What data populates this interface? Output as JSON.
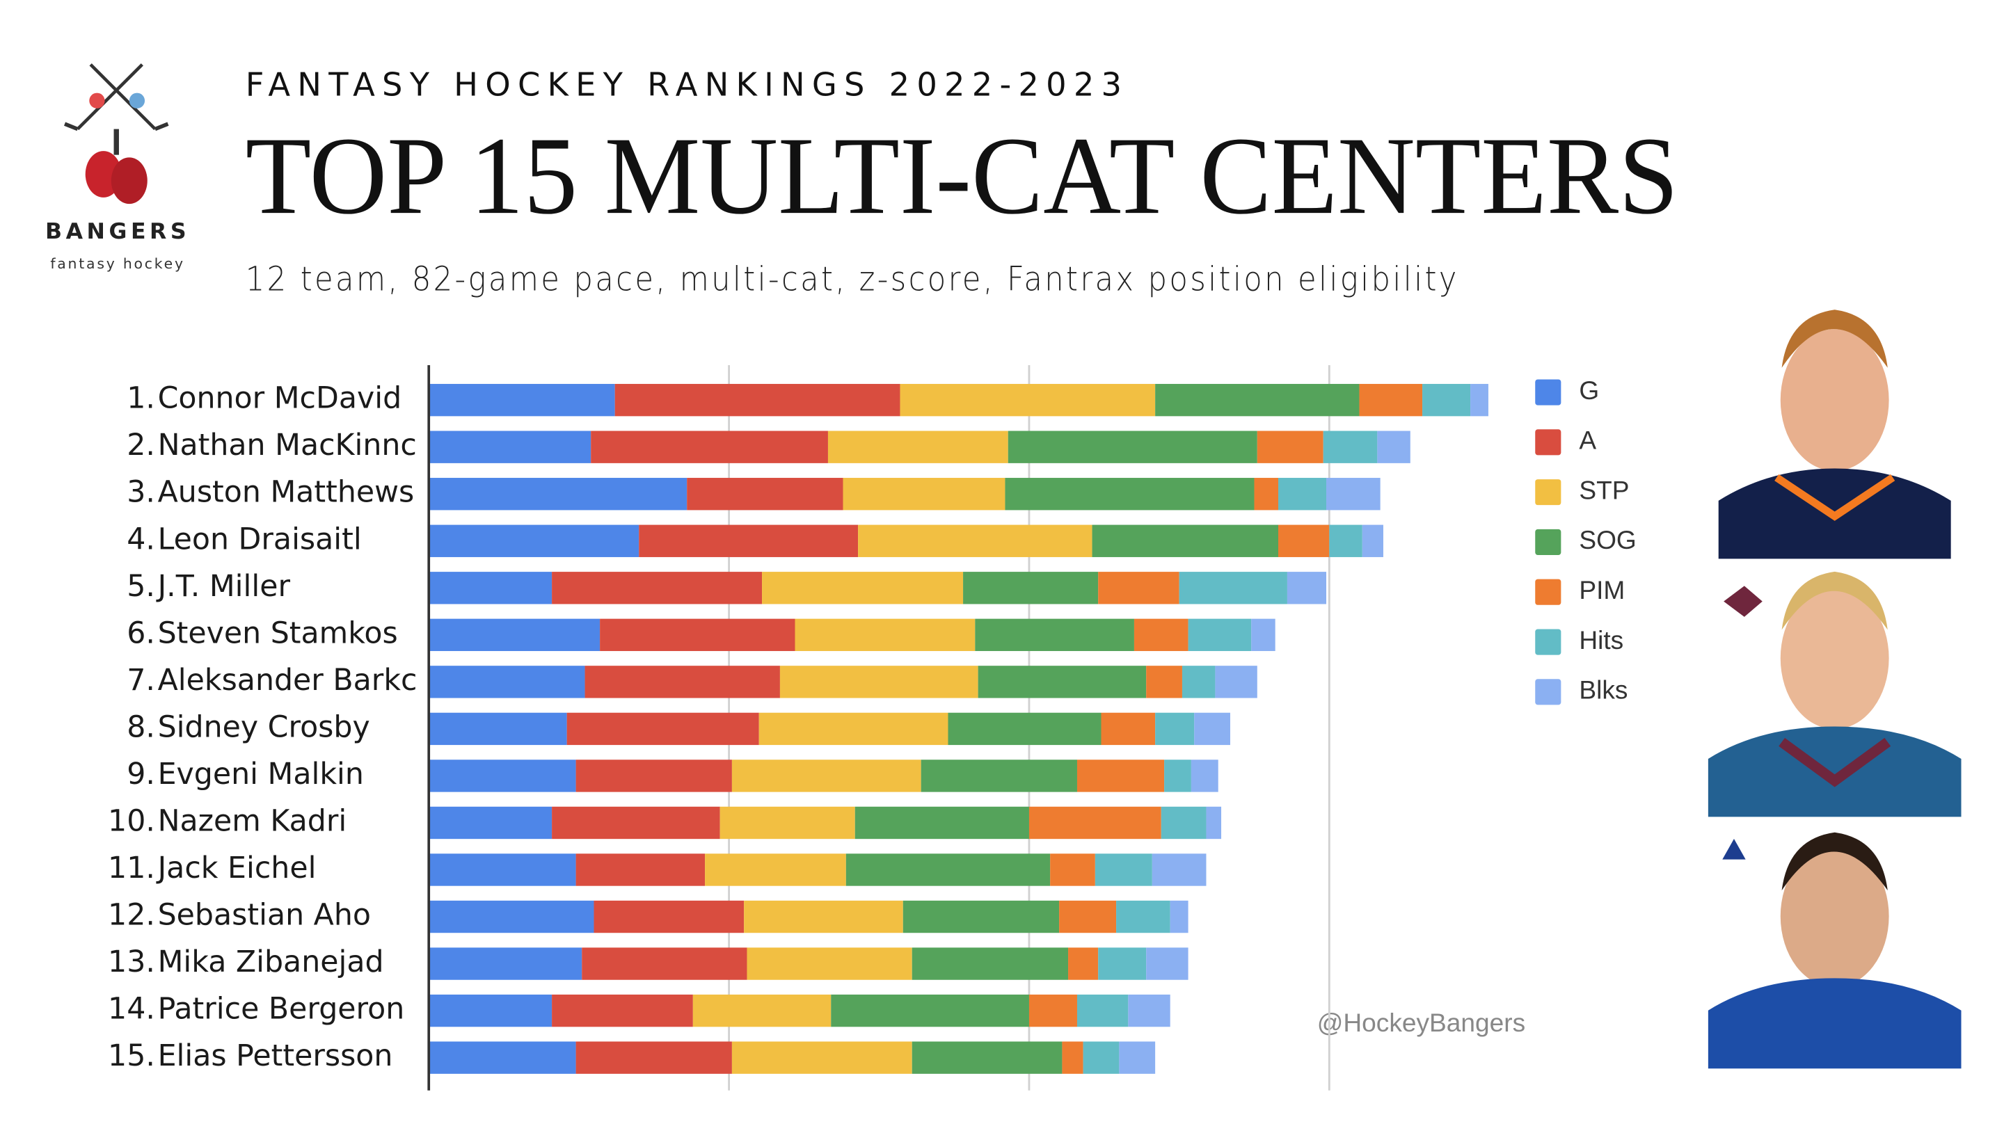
{
  "logo": {
    "name": "BANGERS",
    "tagline": "fantasy hockey"
  },
  "chart_data": {
    "type": "stacked-bar",
    "orientation": "horizontal",
    "header": "FANTASY HOCKEY RANKINGS 2022-2023",
    "title": "TOP 15 MULTI-CAT CENTERS",
    "subtitle": "12 team, 82-game pace, multi-cat, z-score, Fantrax position eligibility",
    "watermark": "@HockeyBangers",
    "ranks": [
      "1.",
      "2.",
      "3.",
      "4.",
      "5.",
      "6.",
      "7.",
      "8.",
      "9.",
      "10.",
      "11.",
      "12.",
      "13.",
      "14.",
      "15."
    ],
    "categories": [
      "Connor McDavid",
      "Nathan MacKinnc",
      "Auston Matthews",
      "Leon Draisaitl",
      "J.T. Miller",
      "Steven Stamkos",
      "Aleksander Barkc",
      "Sidney Crosby",
      "Evgeni Malkin",
      "Nazem Kadri",
      "Jack Eichel",
      "Sebastian Aho",
      "Mika Zibanejad",
      "Patrice Bergeron",
      "Elias Pettersson"
    ],
    "xlim": [
      0,
      3.6
    ],
    "gridlines": [
      1,
      2,
      3
    ],
    "grid": true,
    "legend": "right",
    "series": [
      {
        "name": "G",
        "color": "#4e86e8",
        "values": [
          0.62,
          0.54,
          0.86,
          0.7,
          0.41,
          0.57,
          0.52,
          0.46,
          0.49,
          0.41,
          0.49,
          0.55,
          0.51,
          0.41,
          0.49
        ]
      },
      {
        "name": "A",
        "color": "#d94d3f",
        "values": [
          0.95,
          0.79,
          0.52,
          0.73,
          0.7,
          0.65,
          0.65,
          0.64,
          0.52,
          0.56,
          0.43,
          0.5,
          0.55,
          0.47,
          0.52
        ]
      },
      {
        "name": "STP",
        "color": "#f2bf42",
        "values": [
          0.85,
          0.6,
          0.54,
          0.78,
          0.67,
          0.6,
          0.66,
          0.63,
          0.63,
          0.45,
          0.47,
          0.53,
          0.55,
          0.46,
          0.6
        ]
      },
      {
        "name": "SOG",
        "color": "#55a35b",
        "values": [
          0.68,
          0.83,
          0.83,
          0.62,
          0.45,
          0.53,
          0.56,
          0.51,
          0.52,
          0.58,
          0.68,
          0.52,
          0.52,
          0.66,
          0.5
        ]
      },
      {
        "name": "PIM",
        "color": "#ee7c30",
        "values": [
          0.21,
          0.22,
          0.08,
          0.17,
          0.27,
          0.18,
          0.12,
          0.18,
          0.29,
          0.44,
          0.15,
          0.19,
          0.1,
          0.16,
          0.07
        ]
      },
      {
        "name": "Hits",
        "color": "#62bcc6",
        "values": [
          0.16,
          0.18,
          0.16,
          0.11,
          0.36,
          0.21,
          0.11,
          0.13,
          0.09,
          0.15,
          0.19,
          0.18,
          0.16,
          0.17,
          0.12
        ]
      },
      {
        "name": "Blks",
        "color": "#8bb0f2",
        "values": [
          0.06,
          0.11,
          0.18,
          0.07,
          0.13,
          0.08,
          0.14,
          0.12,
          0.09,
          0.05,
          0.18,
          0.06,
          0.14,
          0.14,
          0.12
        ]
      }
    ]
  }
}
